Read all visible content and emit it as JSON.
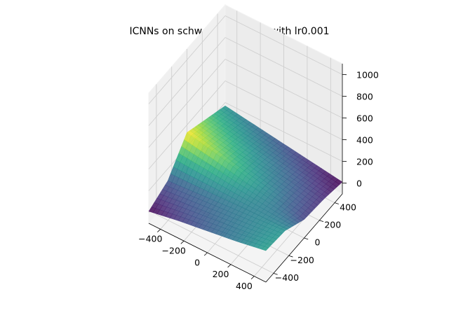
{
  "chart_data": {
    "type": "surface3d",
    "title": "ICNNs on schwefel at t = 50 with lr0.001",
    "xlabel": "",
    "ylabel": "",
    "zlabel": "",
    "xlim": [
      -500,
      500
    ],
    "ylim": [
      -500,
      500
    ],
    "zlim": [
      -100,
      1100
    ],
    "x_ticks": [
      "−400",
      "−200",
      "0",
      "200",
      "400"
    ],
    "y_ticks": [
      "−400",
      "−200",
      "0",
      "200",
      "400"
    ],
    "z_ticks": [
      "0",
      "200",
      "400",
      "600",
      "800",
      "1000"
    ],
    "colormap": "viridis",
    "grid": true,
    "surface": {
      "x": [
        -500,
        -250,
        0,
        250,
        500
      ],
      "y": [
        -500,
        -250,
        0,
        250,
        500
      ],
      "z": [
        [
          10,
          60,
          100,
          140,
          190
        ],
        [
          90,
          110,
          130,
          150,
          170
        ],
        [
          330,
          270,
          200,
          140,
          70
        ],
        [
          250,
          200,
          150,
          100,
          50
        ],
        [
          170,
          130,
          90,
          50,
          10
        ]
      ]
    }
  }
}
